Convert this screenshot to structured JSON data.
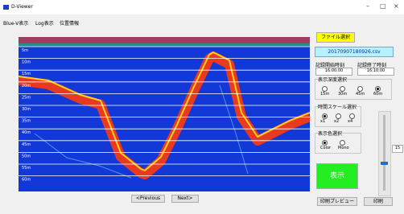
{
  "header": {
    "title": "D-Viewer"
  },
  "menu": [
    "Blue-V表示",
    "Log表示",
    "位置情報"
  ],
  "plot": {
    "depth_labels": [
      "5m",
      "10m",
      "15m",
      "20m",
      "25m",
      "30m",
      "35m",
      "40m",
      "45m",
      "50m",
      "55m",
      "60m"
    ]
  },
  "nav": {
    "previous": "<Previous",
    "next": "Next>"
  },
  "panel": {
    "file_button": "ファイル選択",
    "file_name": "20170907180926.csv",
    "start_label": "記録開始時刻",
    "start_value": "16:00:00",
    "end_label": "記録終了時刻",
    "end_value": "16:10:00",
    "depth_group": {
      "title": "表示深度選択",
      "options": [
        "15m",
        "30m",
        "45m",
        "60m"
      ]
    },
    "scale_group": {
      "title": "時間スケール選択",
      "options": [
        "x1",
        "x2",
        "x4"
      ]
    },
    "color_group": {
      "title": "表示色選択",
      "options": [
        "Color",
        "Mono"
      ]
    },
    "show_button": "表示",
    "slider_value": "15",
    "preview_button": "印刷プレビュー",
    "print_button": "印刷"
  }
}
